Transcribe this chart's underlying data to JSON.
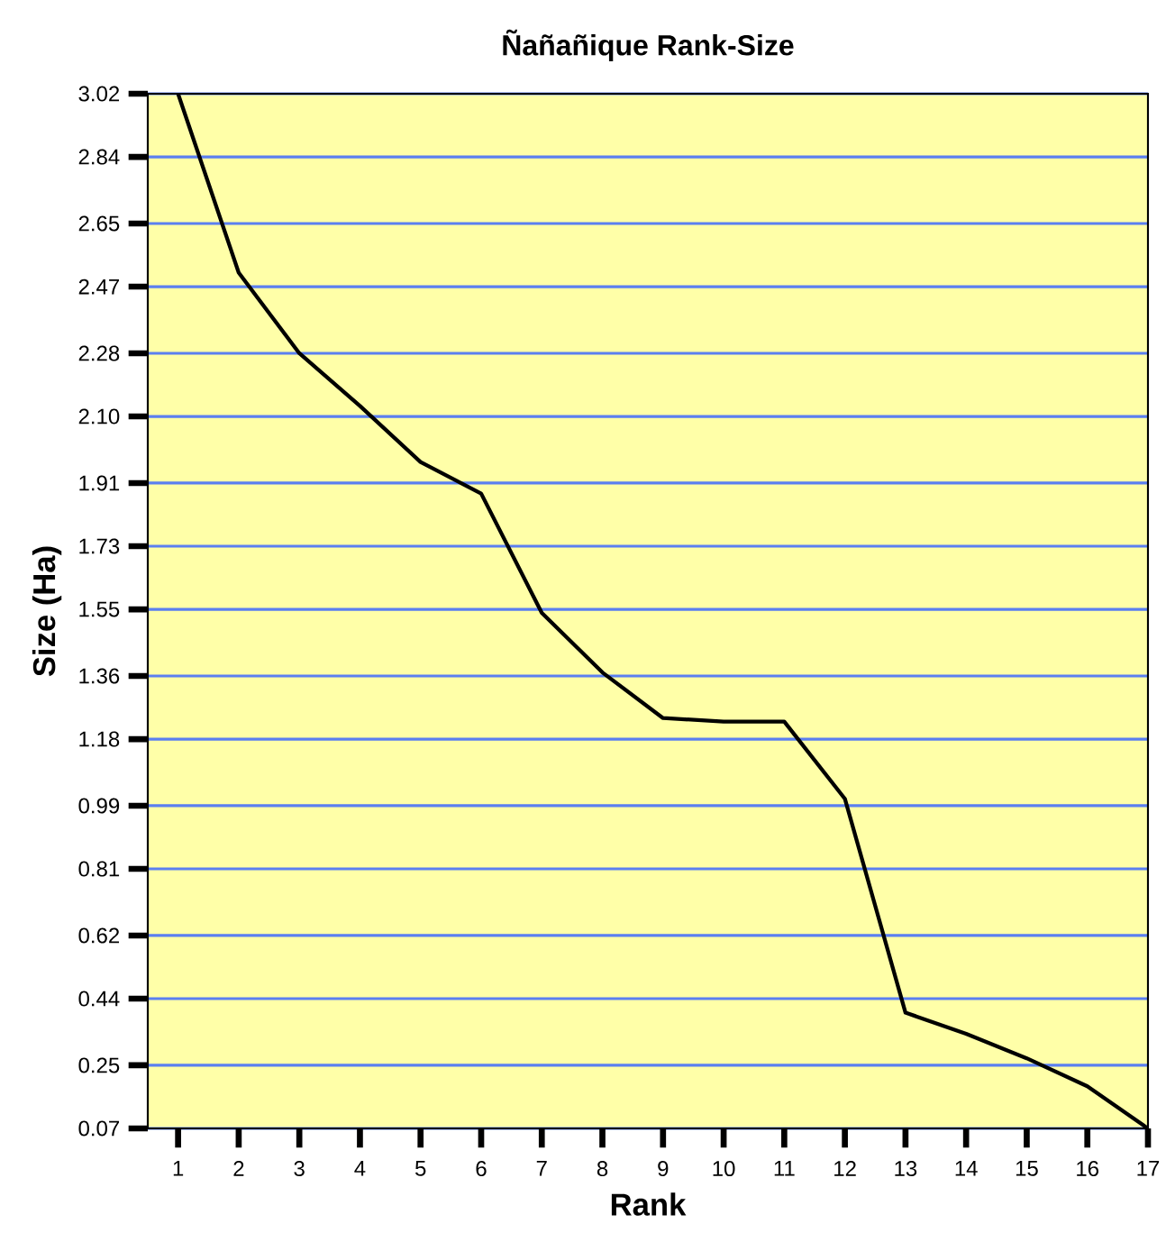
{
  "chart_data": {
    "type": "line",
    "title": "Ñañañique Rank-Size",
    "xlabel": "Rank",
    "ylabel": "Size (Ha)",
    "x": [
      1,
      2,
      3,
      4,
      5,
      6,
      7,
      8,
      9,
      10,
      11,
      12,
      13,
      14,
      15,
      16,
      17
    ],
    "series": [
      {
        "color": "#000000",
        "values": [
          3.02,
          2.51,
          2.28,
          2.13,
          1.97,
          1.88,
          1.54,
          1.37,
          1.24,
          1.23,
          1.23,
          1.01,
          0.4,
          0.34,
          0.27,
          0.19,
          0.07
        ]
      }
    ],
    "xlim": [
      0.5,
      17
    ],
    "ylim": [
      0.07,
      3.02
    ],
    "xticks": [
      1,
      2,
      3,
      4,
      5,
      6,
      7,
      8,
      9,
      10,
      11,
      12,
      13,
      14,
      15,
      16,
      17
    ],
    "yticks": [
      0.07,
      0.25,
      0.44,
      0.62,
      0.81,
      0.99,
      1.18,
      1.36,
      1.55,
      1.73,
      1.91,
      {
        "value": 2.1,
        "label": "2.10"
      },
      2.28,
      2.47,
      2.65,
      2.84,
      3.02
    ],
    "grid": "y",
    "marker": "none",
    "line_style": "solid"
  }
}
